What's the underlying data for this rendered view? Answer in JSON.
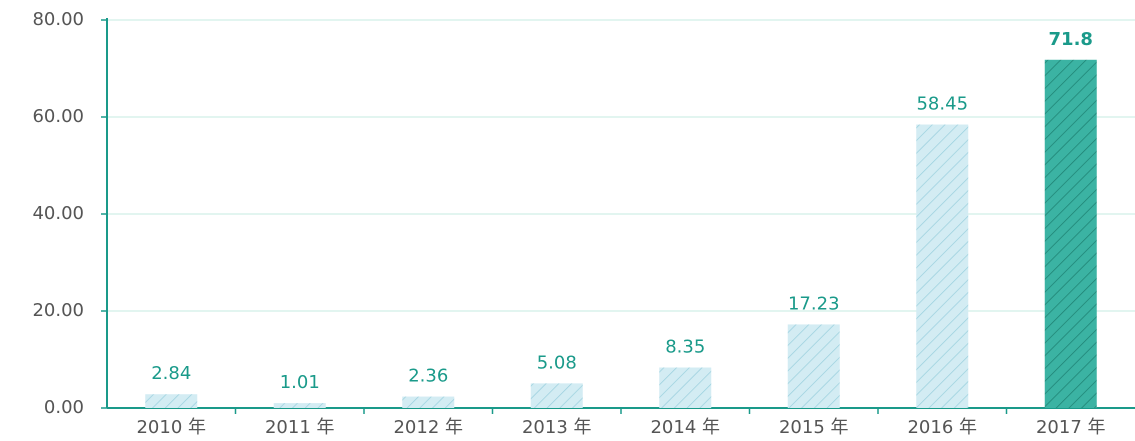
{
  "chart_data": {
    "type": "bar",
    "categories": [
      "2010 年",
      "2011 年",
      "2012 年",
      "2013 年",
      "2014 年",
      "2015 年",
      "2016 年",
      "2017 年"
    ],
    "values": [
      2.84,
      1.01,
      2.36,
      5.08,
      8.35,
      17.23,
      58.45,
      71.8
    ],
    "colors": [
      "#d3ecf3",
      "#d3ecf3",
      "#d3ecf3",
      "#d3ecf3",
      "#d3ecf3",
      "#d3ecf3",
      "#d3ecf3",
      "#3bb3a3"
    ],
    "ylim": [
      0,
      80
    ],
    "yticks": [
      {
        "value": 0,
        "label": "0.00"
      },
      {
        "value": 20,
        "label": "20.00"
      },
      {
        "value": 40,
        "label": "40.00"
      },
      {
        "value": 60,
        "label": "60.00"
      },
      {
        "value": 80,
        "label": "80.00"
      }
    ],
    "grid": true
  }
}
